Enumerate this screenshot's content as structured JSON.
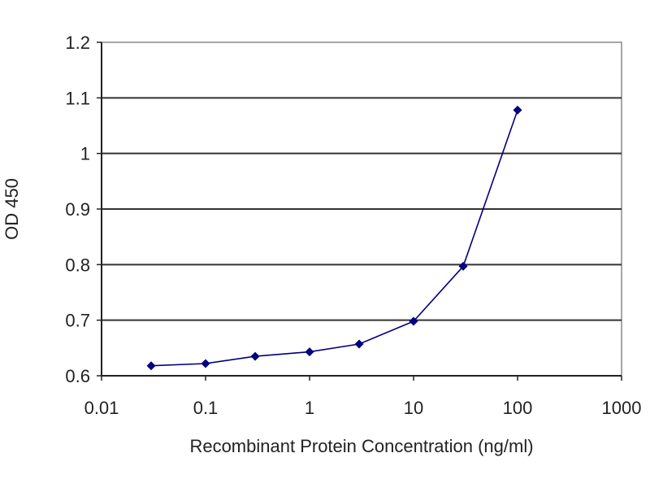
{
  "chart_data": {
    "type": "line",
    "xlabel": "Recombinant Protein Concentration (ng/ml)",
    "ylabel": "OD 450",
    "xscale": "log",
    "xlim": [
      0.01,
      1000
    ],
    "ylim": [
      0.6,
      1.2
    ],
    "x_ticks": [
      0.01,
      0.1,
      1,
      10,
      100,
      1000
    ],
    "x_tick_labels": [
      "0.01",
      "0.1",
      "1",
      "10",
      "100",
      "1000"
    ],
    "y_ticks": [
      0.6,
      0.7,
      0.8,
      0.9,
      1.0,
      1.1,
      1.2
    ],
    "y_tick_labels": [
      "0.6",
      "0.7",
      "0.8",
      "0.9",
      "1",
      "1.1",
      "1.2"
    ],
    "grid": "horizontal",
    "series": [
      {
        "x": [
          0.03,
          0.1,
          0.3,
          1,
          3,
          10,
          30,
          100
        ],
        "y": [
          0.618,
          0.622,
          0.635,
          0.643,
          0.657,
          0.698,
          0.797,
          1.078
        ],
        "color": "#000080"
      }
    ]
  }
}
